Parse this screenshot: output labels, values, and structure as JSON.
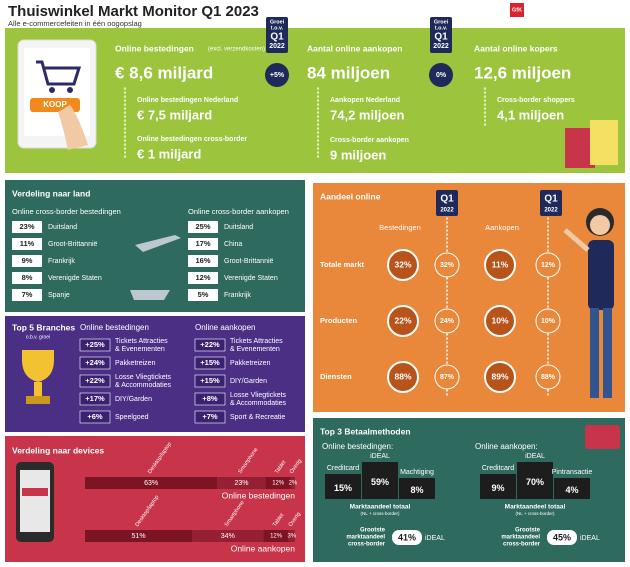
{
  "header": {
    "title": "Thuiswinkel Markt Monitor Q1 2023",
    "subtitle": "Alle e-commercefeiten in één oogopslag",
    "logo": "GfK"
  },
  "overview": {
    "badge": [
      "Groei",
      "t.o.v.",
      "Q1",
      "2022"
    ],
    "button": "KOOP",
    "spending": {
      "label": "Online bestedingen",
      "note": "(excl. verzendkosten)",
      "value": "€ 8,6 miljard",
      "growth": "+5%",
      "nl_label": "Online bestedingen Nederland",
      "nl_value": "€ 7,5 miljard",
      "cb_label": "Online bestedingen cross-border",
      "cb_value": "€ 1 miljard"
    },
    "purchases": {
      "label": "Aantal online aankopen",
      "value": "84 miljoen",
      "growth": "0%",
      "nl_label": "Aankopen Nederland",
      "nl_value": "74,2 miljoen",
      "cb_label": "Cross-border aankopen",
      "cb_value": "9 miljoen"
    },
    "buyers": {
      "label": "Aantal online kopers",
      "value": "12,6 miljoen",
      "cb_label": "Cross-border shoppers",
      "cb_value": "4,1 miljoen"
    }
  },
  "countries": {
    "title": "Verdeling naar land",
    "columns": [
      {
        "heading": "Online cross-border bestedingen",
        "rows": [
          {
            "value": "23%",
            "label": "Duitsland"
          },
          {
            "value": "11%",
            "label": "Groot-Brittannië"
          },
          {
            "value": "9%",
            "label": "Frankrijk"
          },
          {
            "value": "8%",
            "label": "Verenigde Staten"
          },
          {
            "value": "7%",
            "label": "Spanje"
          }
        ]
      },
      {
        "heading": "Online cross-border aankopen",
        "rows": [
          {
            "value": "25%",
            "label": "Duitsland"
          },
          {
            "value": "17%",
            "label": "China"
          },
          {
            "value": "16%",
            "label": "Groot-Brittannië"
          },
          {
            "value": "12%",
            "label": "Verenigde Staten"
          },
          {
            "value": "5%",
            "label": "Frankrijk"
          }
        ]
      }
    ]
  },
  "branches": {
    "title": "Top 5 Branches",
    "subtitle": "o.b.v. groei",
    "columns": [
      {
        "heading": "Online bestedingen",
        "rows": [
          {
            "value": "+25%",
            "label": [
              "Tickets Attracties",
              "& Evenementen"
            ]
          },
          {
            "value": "+24%",
            "label": [
              "Pakketreizen"
            ]
          },
          {
            "value": "+22%",
            "label": [
              "Losse Vliegtickets",
              "& Accommodaties"
            ]
          },
          {
            "value": "+17%",
            "label": [
              "DIY/Garden"
            ]
          },
          {
            "value": "+6%",
            "label": [
              "Speelgoed"
            ]
          }
        ]
      },
      {
        "heading": "Online aankopen",
        "rows": [
          {
            "value": "+22%",
            "label": [
              "Tickets Attracties",
              "& Evenementen"
            ]
          },
          {
            "value": "+15%",
            "label": [
              "Pakketreizen"
            ]
          },
          {
            "value": "+15%",
            "label": [
              "DIY/Garden"
            ]
          },
          {
            "value": "+8%",
            "label": [
              "Losse Vliegtickets",
              "& Accommodaties"
            ]
          },
          {
            "value": "+7%",
            "label": [
              "Sport & Recreatie"
            ]
          }
        ]
      }
    ]
  },
  "devices": {
    "title": "Verdeling naar devices",
    "categories": [
      "Desktop/laptop",
      "Smartphone",
      "Tablet",
      "Overig"
    ],
    "colors": [
      "#7d1424",
      "#962033",
      "#7d1424",
      "#962033"
    ],
    "series": [
      {
        "name": "Online bestedingen",
        "values": [
          63,
          23,
          12,
          2
        ],
        "value_labels": [
          "63%",
          "23%",
          "12%",
          "2%"
        ]
      },
      {
        "name": "Online aankopen",
        "values": [
          51,
          34,
          12,
          3
        ],
        "value_labels": [
          "51%",
          "34%",
          "12%",
          "3%"
        ]
      }
    ]
  },
  "share_online": {
    "title": "Aandeel online",
    "badge": [
      "Q1",
      "2022"
    ],
    "columns": [
      "Bestedingen",
      "Aankopen"
    ],
    "rows": [
      {
        "label": "Totale markt",
        "values": [
          "32%",
          "32%",
          "11%",
          "12%"
        ]
      },
      {
        "label": "Producten",
        "values": [
          "22%",
          "24%",
          "10%",
          "10%"
        ]
      },
      {
        "label": "Diensten",
        "values": [
          "88%",
          "87%",
          "89%",
          "88%"
        ]
      }
    ]
  },
  "payments": {
    "title": "Top 3 Betaalmethoden",
    "total_label": "Marktaandeel totaal",
    "total_note": "(NL + cross-border)",
    "cb_label": [
      "Grootste",
      "marktaandeel",
      "cross-border"
    ],
    "groups": [
      {
        "heading": "Online bestedingen:",
        "methods": [
          {
            "name": "Creditcard",
            "value": "15%"
          },
          {
            "name": "iDEAL",
            "value": "59%"
          },
          {
            "name": "Machtiging",
            "value": "8%"
          }
        ],
        "cb_value": "41%",
        "cb_method": "iDEAL"
      },
      {
        "heading": "Online aankopen:",
        "methods": [
          {
            "name": "Creditcard",
            "value": "9%"
          },
          {
            "name": "iDEAL",
            "value": "70%"
          },
          {
            "name": "Pintransactie",
            "value": "4%"
          }
        ],
        "cb_value": "45%",
        "cb_method": "iDEAL"
      }
    ]
  }
}
